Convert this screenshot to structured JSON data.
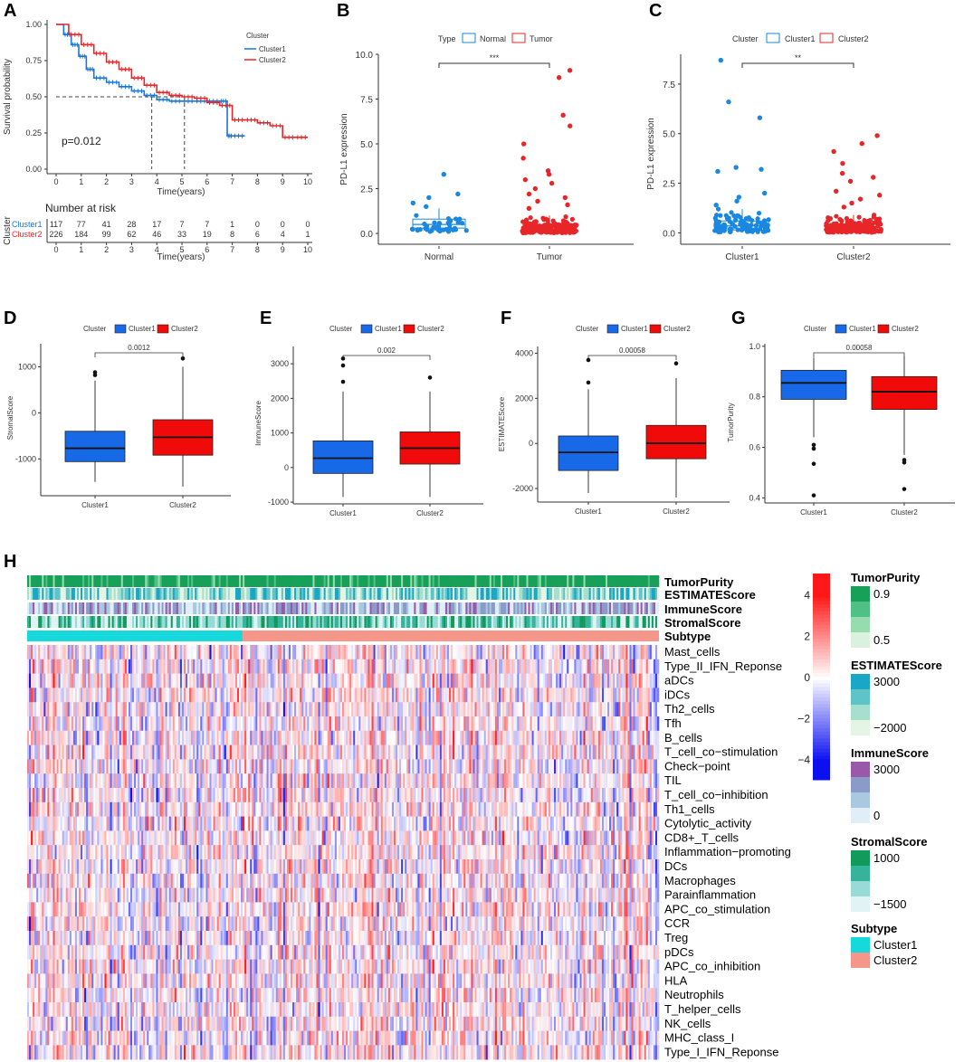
{
  "colors": {
    "cluster1": "#1a76d8",
    "cluster2": "#e8262a",
    "normal": "#1a88e0",
    "tumor": "#e8262a",
    "box_blue": "#1769e8",
    "box_red": "#f00a0a",
    "subtype_cluster1": "#17d9db",
    "subtype_cluster2": "#f4978a",
    "heat_low": "#0c10f0",
    "heat_mid": "#ffffff",
    "heat_high": "#f01818"
  },
  "panels": {
    "A": "A",
    "B": "B",
    "C": "C",
    "D": "D",
    "E": "E",
    "F": "F",
    "G": "G",
    "H": "H"
  },
  "chart_data": [
    {
      "id": "A",
      "type": "line",
      "title": "",
      "xlabel": "Time(years)",
      "ylabel": "Survival probability",
      "xlim": [
        0,
        10
      ],
      "ylim": [
        0,
        1
      ],
      "xticks": [
        "0",
        "1",
        "2",
        "3",
        "4",
        "5",
        "6",
        "7",
        "8",
        "9",
        "10"
      ],
      "yticks": [
        "0.00",
        "0.25",
        "0.50",
        "0.75",
        "1.00"
      ],
      "legend_title": "Cluster",
      "legend": [
        "Cluster1",
        "Cluster2"
      ],
      "pvalue": "p=0.012",
      "median_lines": [
        3.8,
        5.1
      ],
      "series": [
        {
          "name": "Cluster1",
          "x": [
            0,
            0.3,
            0.6,
            0.9,
            1.2,
            1.5,
            2.0,
            2.5,
            3.0,
            3.5,
            4.0,
            4.5,
            5.0,
            5.5,
            6.0,
            6.5,
            6.8,
            7.0,
            7.5
          ],
          "y": [
            1.0,
            0.93,
            0.86,
            0.78,
            0.69,
            0.63,
            0.6,
            0.57,
            0.54,
            0.51,
            0.48,
            0.47,
            0.47,
            0.47,
            0.47,
            0.47,
            0.23,
            0.23,
            0.23
          ]
        },
        {
          "name": "Cluster2",
          "x": [
            0,
            0.5,
            1.0,
            1.5,
            2.0,
            2.5,
            3.0,
            3.5,
            4.0,
            4.5,
            5.0,
            5.5,
            6.0,
            6.5,
            7.0,
            7.5,
            8.0,
            8.5,
            9.0,
            9.5,
            10.0
          ],
          "y": [
            1.0,
            0.93,
            0.86,
            0.8,
            0.74,
            0.69,
            0.63,
            0.58,
            0.53,
            0.51,
            0.5,
            0.49,
            0.46,
            0.44,
            0.34,
            0.34,
            0.32,
            0.3,
            0.22,
            0.22,
            0.22
          ]
        }
      ],
      "risk_table": {
        "title": "Number at risk",
        "ylabel": "Cluster",
        "xlabel": "Time(years)",
        "rows": [
          {
            "name": "Cluster1",
            "values": [
              "117",
              "77",
              "41",
              "28",
              "17",
              "7",
              "7",
              "1",
              "0",
              "0",
              "0"
            ]
          },
          {
            "name": "Cluster2",
            "values": [
              "226",
              "184",
              "99",
              "62",
              "46",
              "33",
              "19",
              "8",
              "6",
              "4",
              "1"
            ]
          }
        ]
      }
    },
    {
      "id": "B",
      "type": "scatter",
      "legend_title": "Type",
      "legend": [
        "Normal",
        "Tumor"
      ],
      "categories": [
        "Normal",
        "Tumor"
      ],
      "ylabel": "PD-L1 expression",
      "ylim": [
        -0.3,
        10.0
      ],
      "yticks": [
        "0.0",
        "2.5",
        "5.0",
        "7.5",
        "10.0"
      ],
      "significance": "***",
      "boxes": [
        {
          "name": "Normal",
          "q1": 0.3,
          "median": 0.5,
          "q3": 0.8,
          "min": 0.0,
          "max": 1.4
        },
        {
          "name": "Tumor",
          "q1": 0.1,
          "median": 0.25,
          "q3": 0.5,
          "min": 0.0,
          "max": 1.0
        }
      ],
      "outliers": {
        "Normal": [
          3.3,
          2.2,
          2.0,
          1.7,
          1.5
        ],
        "Tumor": [
          9.1,
          8.7,
          6.6,
          6.0,
          5.0,
          4.2,
          3.5,
          3.3,
          3.0,
          2.8,
          2.5,
          2.2,
          2.0,
          1.8,
          1.6,
          1.4
        ]
      }
    },
    {
      "id": "C",
      "type": "scatter",
      "legend_title": "Cluster",
      "legend": [
        "Cluster1",
        "Cluster2"
      ],
      "categories": [
        "Cluster1",
        "Cluster2"
      ],
      "ylabel": "PD-L1 expression",
      "ylim": [
        -0.3,
        9.0
      ],
      "yticks": [
        "0.0",
        "2.5",
        "5.0",
        "7.5"
      ],
      "significance": "**",
      "boxes": [
        {
          "name": "Cluster1",
          "q1": 0.15,
          "median": 0.35,
          "q3": 0.6,
          "min": 0.0,
          "max": 1.2
        },
        {
          "name": "Cluster2",
          "q1": 0.1,
          "median": 0.25,
          "q3": 0.45,
          "min": 0.0,
          "max": 0.9
        }
      ],
      "outliers": {
        "Cluster1": [
          8.7,
          6.6,
          5.8,
          3.3,
          3.2,
          3.1,
          2.0,
          1.8,
          1.6,
          1.4
        ],
        "Cluster2": [
          4.9,
          4.5,
          4.1,
          3.5,
          3.0,
          2.8,
          2.6,
          2.1,
          1.9,
          1.7,
          1.5,
          1.3
        ]
      }
    },
    {
      "id": "D",
      "type": "bar",
      "legend_title": "Cluster",
      "legend": [
        "Cluster1",
        "Cluster2"
      ],
      "categories": [
        "Cluster1",
        "Cluster2"
      ],
      "ylabel": "StromalScore",
      "ylim": [
        -1800,
        1500
      ],
      "yticks": [
        "-1000",
        "0",
        "1000"
      ],
      "ytick_values": [
        -1000,
        0,
        1000
      ],
      "pvalue": "0.0012",
      "boxes": [
        {
          "name": "Cluster1",
          "min": -1500,
          "q1": -1060,
          "median": -770,
          "q3": -400,
          "max": 700
        },
        {
          "name": "Cluster2",
          "min": -1600,
          "q1": -920,
          "median": -530,
          "q3": -150,
          "max": 1000
        }
      ],
      "outliers": {
        "Cluster1": [
          880,
          820
        ],
        "Cluster2": [
          1180
        ]
      }
    },
    {
      "id": "E",
      "type": "bar",
      "legend_title": "Cluster",
      "legend": [
        "Cluster1",
        "Cluster2"
      ],
      "categories": [
        "Cluster1",
        "Cluster2"
      ],
      "ylabel": "ImmuneScore",
      "ylim": [
        -1050,
        3500
      ],
      "yticks": [
        "-1000",
        "0",
        "1000",
        "2000",
        "3000"
      ],
      "ytick_values": [
        -1000,
        0,
        1000,
        2000,
        3000
      ],
      "pvalue": "0.002",
      "boxes": [
        {
          "name": "Cluster1",
          "min": -850,
          "q1": -170,
          "median": 270,
          "q3": 770,
          "max": 2200
        },
        {
          "name": "Cluster2",
          "min": -850,
          "q1": 100,
          "median": 560,
          "q3": 1030,
          "max": 2200
        }
      ],
      "outliers": {
        "Cluster1": [
          3150,
          2950,
          2480
        ],
        "Cluster2": [
          2600
        ]
      }
    },
    {
      "id": "F",
      "type": "bar",
      "legend_title": "Cluster",
      "legend": [
        "Cluster1",
        "Cluster2"
      ],
      "categories": [
        "Cluster1",
        "Cluster2"
      ],
      "ylabel": "ESTIMATEScore",
      "ylim": [
        -2600,
        4300
      ],
      "yticks": [
        "-2000",
        "0",
        "2000",
        "4000"
      ],
      "ytick_values": [
        -2000,
        0,
        2000,
        4000
      ],
      "pvalue": "0.00058",
      "boxes": [
        {
          "name": "Cluster1",
          "min": -2200,
          "q1": -1200,
          "median": -400,
          "q3": 330,
          "max": 2400
        },
        {
          "name": "Cluster2",
          "min": -2400,
          "q1": -680,
          "median": 10,
          "q3": 800,
          "max": 2900
        }
      ],
      "outliers": {
        "Cluster1": [
          3700,
          2700
        ],
        "Cluster2": [
          3550
        ]
      }
    },
    {
      "id": "G",
      "type": "bar",
      "legend_title": "Cluster",
      "legend": [
        "Cluster1",
        "Cluster2"
      ],
      "categories": [
        "Cluster1",
        "Cluster2"
      ],
      "ylabel": "TumorPurity",
      "ylim": [
        0.38,
        1.01
      ],
      "yticks": [
        "0.4",
        "0.6",
        "0.8",
        "1.0"
      ],
      "ytick_values": [
        0.4,
        0.6,
        0.8,
        1.0
      ],
      "pvalue": "0.00058",
      "boxes": [
        {
          "name": "Cluster1",
          "min": 0.64,
          "q1": 0.79,
          "median": 0.855,
          "q3": 0.905,
          "max": 0.955
        },
        {
          "name": "Cluster2",
          "min": 0.57,
          "q1": 0.75,
          "median": 0.82,
          "q3": 0.88,
          "max": 0.96
        }
      ],
      "outliers": {
        "Cluster1": [
          0.61,
          0.595,
          0.535,
          0.41
        ],
        "Cluster2": [
          0.55,
          0.54,
          0.435
        ]
      }
    },
    {
      "id": "H",
      "type": "heatmap",
      "annotation_rows": [
        "TumorPurity",
        "ESTIMATEScore",
        "ImmuneScore",
        "StromalScore",
        "Subtype"
      ],
      "rows": [
        "Mast_cells",
        "Type_II_IFN_Reponse",
        "aDCs",
        "iDCs",
        "Th2_cells",
        "Tfh",
        "B_cells",
        "T_cell_co−stimulation",
        "Check−point",
        "TIL",
        "T_cell_co−inhibition",
        "Th1_cells",
        "Cytolytic_activity",
        "CD8+_T_cells",
        "Inflammation−promoting",
        "DCs",
        "Macrophages",
        "Parainflammation",
        "APC_co_stimulation",
        "CCR",
        "Treg",
        "pDCs",
        "APC_co_inhibition",
        "HLA",
        "Neutrophils",
        "T_helper_cells",
        "NK_cells",
        "MHC_class_I",
        "Type_I_IFN_Reponse"
      ],
      "n_columns": 343,
      "cluster1_count": 117,
      "colorbar": {
        "ticks": [
          "4",
          "2",
          "0",
          "−2",
          "−4"
        ],
        "tick_values": [
          4,
          2,
          0,
          -2,
          -4
        ],
        "range": [
          -5,
          5
        ]
      },
      "legends": [
        {
          "title": "TumorPurity",
          "labels": [
            "0.9",
            "0.5"
          ],
          "colors": [
            "#16a058",
            "#4fc185",
            "#97dcae",
            "#d9f1dd"
          ]
        },
        {
          "title": "ESTIMATEScore",
          "labels": [
            "3000",
            "−2000"
          ],
          "colors": [
            "#1aa7c6",
            "#5ec4c7",
            "#a7dfce",
            "#e4f5e3"
          ]
        },
        {
          "title": "ImmuneScore",
          "labels": [
            "3000",
            "0"
          ],
          "colors": [
            "#9a58a8",
            "#8a9bc9",
            "#a9c9e1",
            "#e0eef7"
          ]
        },
        {
          "title": "StromalScore",
          "labels": [
            "1000",
            "−1500"
          ],
          "colors": [
            "#129a5a",
            "#36b49b",
            "#98dbd6",
            "#e1f3f5"
          ]
        },
        {
          "title": "Subtype",
          "labels": [
            "Cluster1",
            "Cluster2"
          ],
          "colors": [
            "#17d9db",
            "#f4978a"
          ]
        }
      ]
    }
  ]
}
